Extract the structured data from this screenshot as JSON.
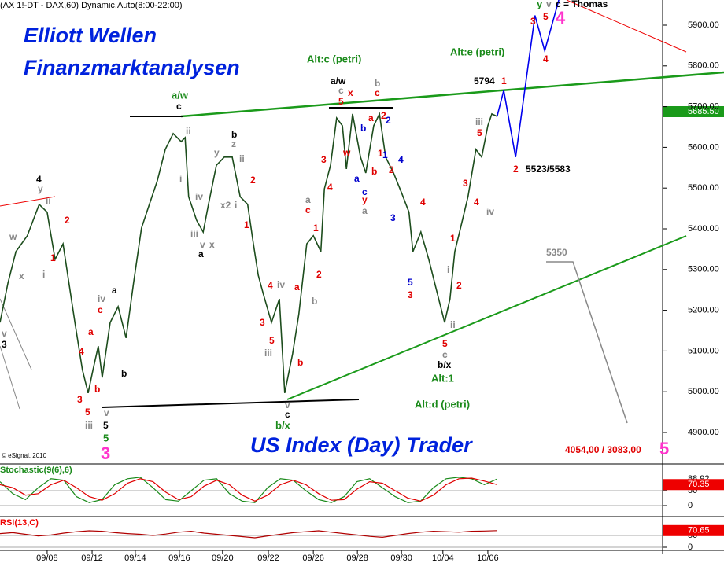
{
  "header": "(AX 1!-DT - DAX,60) Dynamic,Auto(8:00-22:00)",
  "brand": "US Index (Day) Trader",
  "copyright": "© eSignal, 2010",
  "chart_data": [
    {
      "type": "line",
      "title": "Elliott Wellen",
      "subtitle": "Finanzmarktanalysen",
      "price_tag": "5685.50",
      "xlim": [
        -1.07,
        13.93
      ],
      "ylim": [
        4850,
        5960
      ],
      "xticks": [
        {
          "value": 0,
          "label": "09/08"
        },
        {
          "value": 1.02,
          "label": "09/12"
        },
        {
          "value": 2.0,
          "label": "09/14"
        },
        {
          "value": 3.0,
          "label": "09/16"
        },
        {
          "value": 3.98,
          "label": "09/20"
        },
        {
          "value": 5.02,
          "label": "09/22"
        },
        {
          "value": 6.04,
          "label": "09/26"
        },
        {
          "value": 7.04,
          "label": "09/28"
        },
        {
          "value": 8.04,
          "label": "09/30"
        },
        {
          "value": 8.98,
          "label": "10/04"
        },
        {
          "value": 10.0,
          "label": "10/06"
        }
      ],
      "yticks": [
        {
          "value": 5900,
          "label": "5900.00"
        },
        {
          "value": 5800,
          "label": "5800.00"
        },
        {
          "value": 5700,
          "label": "5700.00"
        },
        {
          "value": 5600,
          "label": "5600.00"
        },
        {
          "value": 5500,
          "label": "5500.00"
        },
        {
          "value": 5400,
          "label": "5400.00"
        },
        {
          "value": 5300,
          "label": "5300.00"
        },
        {
          "value": 5200,
          "label": "5200.00"
        },
        {
          "value": 5100,
          "label": "5100.00"
        },
        {
          "value": 5000,
          "label": "5000.00"
        },
        {
          "value": 4900,
          "label": "4900.00"
        }
      ],
      "series": [
        {
          "color": "#1d4d1d",
          "x": [
            -1.07,
            -0.89,
            -0.71,
            -0.45,
            -0.18,
            0,
            0.18,
            0.36,
            0.63,
            0.8,
            0.93,
            1.04,
            1.16,
            1.25,
            1.43,
            1.61,
            1.79,
            1.96,
            2.14,
            2.32,
            2.5,
            2.68,
            2.86,
            3.04,
            3.13,
            3.21,
            3.39,
            3.54,
            3.66,
            3.84,
            4.02,
            4.2,
            4.38,
            4.55,
            4.68,
            4.79,
            4.91,
            5.09,
            5.27,
            5.39,
            5.57,
            5.71,
            5.89,
            6.04,
            6.21,
            6.29,
            6.43,
            6.57,
            6.7,
            6.79,
            6.93,
            7.11,
            7.23,
            7.41,
            7.54,
            7.68,
            7.86,
            8.04,
            8.21,
            8.3,
            8.48,
            8.66,
            8.84,
            9.02,
            9.14,
            9.25,
            9.38,
            9.55,
            9.73,
            9.86,
            10,
            10.09,
            10.21
          ],
          "values": [
            5170,
            5267,
            5344,
            5383,
            5460,
            5441,
            5325,
            5363,
            5170,
            5054,
            4997,
            5054,
            5112,
            5035,
            5170,
            5209,
            5132,
            5267,
            5402,
            5460,
            5518,
            5595,
            5634,
            5614,
            5624,
            5479,
            5421,
            5392,
            5460,
            5556,
            5576,
            5576,
            5479,
            5460,
            5363,
            5286,
            5238,
            5170,
            5228,
            4997,
            5093,
            5190,
            5363,
            5383,
            5344,
            5498,
            5556,
            5672,
            5653,
            5547,
            5682,
            5576,
            5537,
            5653,
            5682,
            5576,
            5537,
            5489,
            5441,
            5344,
            5392,
            5325,
            5247,
            5170,
            5228,
            5344,
            5402,
            5479,
            5595,
            5576,
            5653,
            5682,
            5676
          ]
        },
        {
          "color": "#0000ee",
          "x": [
            10.21,
            10.36,
            10.63,
            11.07,
            11.29,
            11.61
          ],
          "values": [
            5676,
            5740,
            5576,
            5924,
            5837,
            5962
          ]
        }
      ],
      "annotations": [
        "a/w",
        "c",
        "Alt:c (petri)",
        "Alt:e (petri)",
        "a/w",
        "c",
        "5",
        "x",
        "b",
        "c",
        "5794",
        "1",
        "3",
        "5",
        "y",
        "v",
        "c = Thomas",
        "4",
        "4",
        "2",
        "5523/5583",
        "iii",
        "5",
        "3",
        "4",
        "iv",
        "1",
        "i",
        "2",
        "ii",
        "5",
        "c",
        "b/x",
        "Alt:1",
        "Alt:d (petri)",
        "5350",
        "4",
        "5",
        "3",
        "2",
        "2",
        "1",
        "4",
        "3",
        "a",
        "b",
        "b",
        "1",
        "2",
        "a",
        "c",
        "y",
        "a",
        "w",
        "3",
        "4",
        "a",
        "c",
        "1",
        "2",
        "b",
        "a",
        "iv",
        "4",
        "3",
        "5",
        "iii",
        "b",
        "v",
        "c",
        "b/x",
        "b",
        "z",
        "y",
        "ii",
        "2",
        "iv",
        "x2",
        "i",
        "1",
        "iii",
        "v",
        "x",
        "a",
        "ii",
        "i",
        "a",
        "iv",
        "c",
        "a",
        "4",
        "b",
        "b",
        "3",
        "5",
        "v",
        "iii",
        "5",
        "5",
        "4",
        "y",
        "ii",
        "2",
        "w",
        "1",
        "x",
        "i",
        "v",
        "3",
        "3",
        "5",
        "4054,00 / 3083,00"
      ]
    },
    {
      "type": "line",
      "title": "Stochastic(9(6),6)",
      "xlim": [
        -1.07,
        13.93
      ],
      "ylim": [
        0,
        100
      ],
      "yticks": [
        0,
        50
      ],
      "series": [
        {
          "color": "#1a8a1a",
          "values": [
            80,
            40,
            20,
            60,
            90,
            85,
            30,
            10,
            20,
            70,
            90,
            95,
            60,
            20,
            15,
            50,
            85,
            90,
            40,
            15,
            10,
            60,
            90,
            85,
            50,
            20,
            10,
            30,
            80,
            90,
            60,
            30,
            10,
            15,
            60,
            90,
            95,
            90,
            70,
            88.92
          ]
        },
        {
          "color": "#e00000",
          "values": [
            70,
            60,
            35,
            40,
            70,
            85,
            60,
            30,
            18,
            40,
            75,
            90,
            80,
            45,
            20,
            30,
            65,
            85,
            70,
            35,
            15,
            35,
            70,
            85,
            70,
            40,
            18,
            20,
            55,
            80,
            75,
            50,
            25,
            15,
            35,
            70,
            90,
            92,
            82,
            70.35
          ]
        }
      ]
    },
    {
      "type": "line",
      "title": "RSI(13,C)",
      "xlim": [
        -1.07,
        13.93
      ],
      "ylim": [
        0,
        100
      ],
      "yticks": [
        0,
        50
      ],
      "series": [
        {
          "color": "#b00000",
          "values": [
            58,
            62,
            55,
            48,
            52,
            60,
            66,
            70,
            68,
            62,
            58,
            55,
            50,
            56,
            64,
            68,
            60,
            55,
            50,
            45,
            40,
            48,
            55,
            62,
            66,
            70,
            64,
            58,
            52,
            46,
            42,
            50,
            58,
            64,
            68,
            66,
            64,
            68,
            69,
            70.65
          ]
        }
      ]
    }
  ]
}
